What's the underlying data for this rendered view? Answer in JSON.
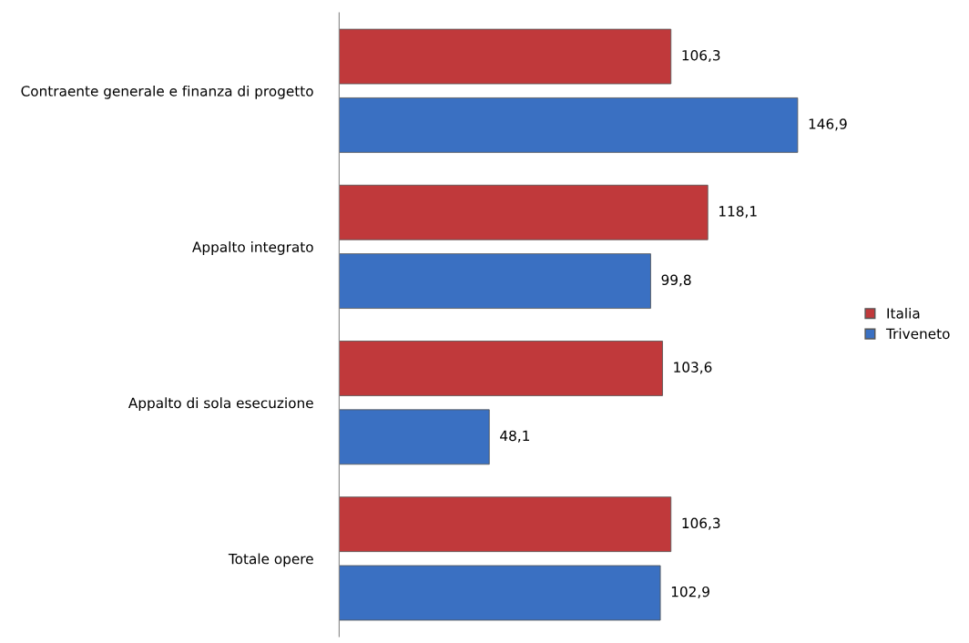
{
  "chart_data": {
    "type": "bar",
    "orientation": "horizontal",
    "categories": [
      "Contraente generale e finanza di progetto",
      "Appalto integrato",
      "Appalto di sola esecuzione",
      "Totale opere"
    ],
    "series": [
      {
        "name": "Italia",
        "color": "#c0393b",
        "values": [
          106.3,
          118.1,
          103.6,
          106.3
        ],
        "value_labels": [
          "106,3",
          "118,1",
          "103,6",
          "106,3"
        ]
      },
      {
        "name": "Triveneto",
        "color": "#3a70c2",
        "values": [
          146.9,
          99.8,
          48.1,
          102.9
        ],
        "value_labels": [
          "146,9",
          "99,8",
          "48,1",
          "102,9"
        ]
      }
    ],
    "legend": "right",
    "grid": false
  }
}
